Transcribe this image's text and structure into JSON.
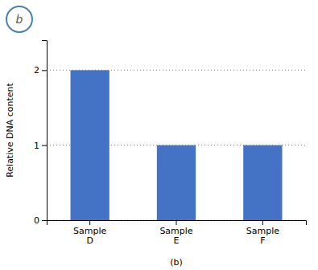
{
  "chart_data": {
    "type": "bar",
    "categories": [
      "Sample\nD",
      "Sample\nE",
      "Sample\nF"
    ],
    "values": [
      2,
      1,
      1
    ],
    "color": "#4472c4",
    "ylabel": "Relative DNA content",
    "xlabel": "(b)",
    "annotations": [
      "b"
    ],
    "ylim": [
      0,
      2.4
    ],
    "yticks": [
      0,
      1,
      2
    ],
    "grid": true
  }
}
